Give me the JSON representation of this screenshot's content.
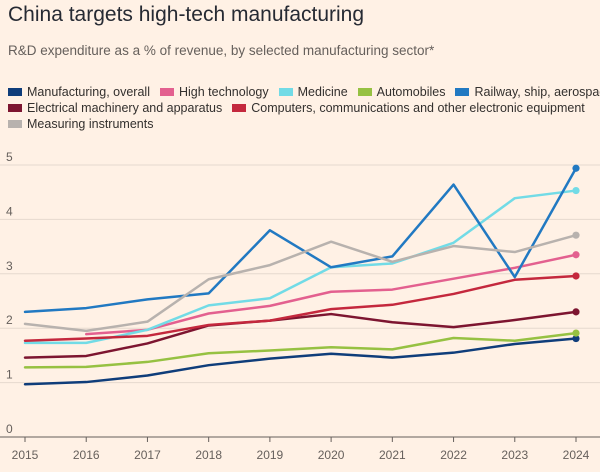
{
  "chart_data": {
    "type": "line",
    "title": "China targets high-tech manufacturing",
    "subtitle": "R&D expenditure as a % of revenue, by selected manufacturing sector*",
    "xlabel": "",
    "ylabel": "",
    "x": [
      2015,
      2016,
      2017,
      2018,
      2019,
      2020,
      2021,
      2022,
      2023,
      2024
    ],
    "x_tick_labels": [
      "2015",
      "2016",
      "2017",
      "2018",
      "2019",
      "2020",
      "2021",
      "2022",
      "2023",
      "2024"
    ],
    "ylim": [
      0,
      5
    ],
    "y_ticks": [
      0,
      1,
      2,
      3,
      4,
      5
    ],
    "y_tick_labels": [
      "0",
      "1",
      "2",
      "3",
      "4",
      "5"
    ],
    "grid": true,
    "legend_position": "top-left",
    "series": [
      {
        "name": "Manufacturing, overall",
        "color": "#0f3d7a",
        "values": [
          0.97,
          1.01,
          1.13,
          1.32,
          1.44,
          1.53,
          1.46,
          1.55,
          1.71,
          1.81
        ]
      },
      {
        "name": "High technology",
        "color": "#e3608f",
        "values": [
          null,
          1.89,
          1.97,
          2.27,
          2.41,
          2.67,
          2.71,
          2.91,
          3.11,
          3.35
        ]
      },
      {
        "name": "Medicine",
        "color": "#72dbe6",
        "values": [
          1.73,
          1.73,
          1.97,
          2.42,
          2.55,
          3.12,
          3.19,
          3.57,
          4.39,
          4.53
        ]
      },
      {
        "name": "Automobiles",
        "color": "#96c142",
        "values": [
          1.28,
          1.29,
          1.38,
          1.54,
          1.59,
          1.65,
          1.61,
          1.82,
          1.77,
          1.91
        ]
      },
      {
        "name": "Railway, ship, aerospace",
        "color": "#2179c2",
        "values": [
          2.3,
          2.37,
          2.53,
          2.64,
          3.8,
          3.12,
          3.32,
          4.64,
          2.94,
          4.94
        ]
      },
      {
        "name": "Electrical machinery and apparatus",
        "color": "#7d1530",
        "values": [
          1.46,
          1.49,
          1.72,
          2.05,
          2.14,
          2.26,
          2.11,
          2.02,
          2.15,
          2.3
        ]
      },
      {
        "name": "Computers, communications and other electronic equipment",
        "color": "#c4283d",
        "values": [
          1.77,
          1.81,
          1.86,
          2.06,
          2.14,
          2.35,
          2.43,
          2.63,
          2.89,
          2.96
        ]
      },
      {
        "name": "Measuring instruments",
        "color": "#b8b2ae",
        "values": [
          2.08,
          1.95,
          2.12,
          2.9,
          3.16,
          3.59,
          3.22,
          3.51,
          3.4,
          3.71
        ]
      }
    ]
  }
}
